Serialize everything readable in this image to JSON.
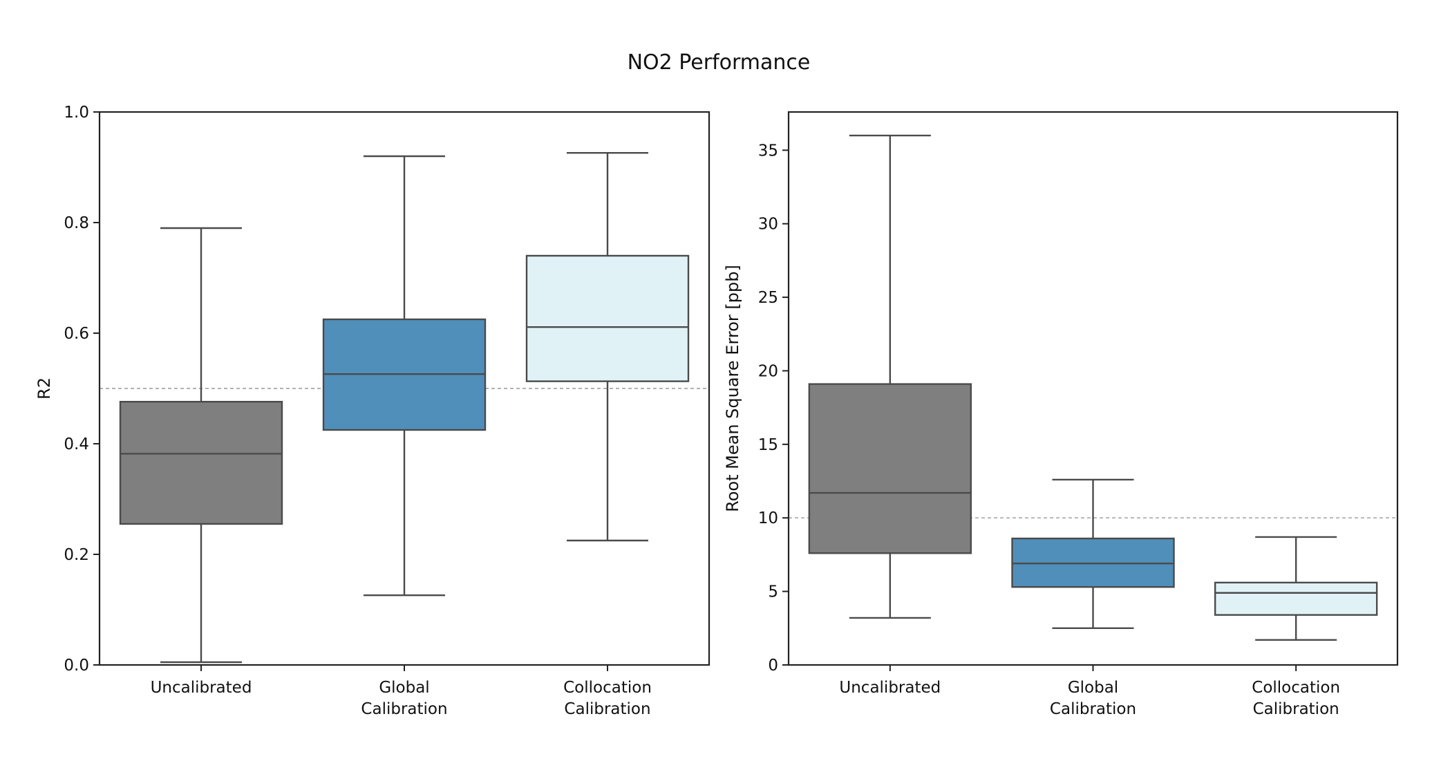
{
  "title": "NO2 Performance",
  "chart_data": [
    {
      "type": "box",
      "title": "",
      "xlabel": "",
      "ylabel": "R2",
      "ylim": [
        0,
        1.0
      ],
      "yticks": [
        "0.0",
        "0.2",
        "0.4",
        "0.6",
        "0.8",
        "1.0"
      ],
      "ytick_values": [
        0,
        0.2,
        0.4,
        0.6,
        0.8,
        1.0
      ],
      "reference_line": 0.5,
      "categories": [
        [
          "Uncalibrated"
        ],
        [
          "Global",
          "Calibration"
        ],
        [
          "Collocation",
          "Calibration"
        ]
      ],
      "boxes": [
        {
          "whisker_low": 0.005,
          "q1": 0.255,
          "median": 0.382,
          "q3": 0.476,
          "whisker_high": 0.79,
          "color": "#7f7f7f"
        },
        {
          "whisker_low": 0.126,
          "q1": 0.425,
          "median": 0.526,
          "q3": 0.625,
          "whisker_high": 0.92,
          "color": "#4f8fba"
        },
        {
          "whisker_low": 0.225,
          "q1": 0.513,
          "median": 0.611,
          "q3": 0.74,
          "whisker_high": 0.926,
          "color": "#e1f2f7"
        }
      ]
    },
    {
      "type": "box",
      "title": "",
      "xlabel": "",
      "ylabel": "Root Mean Square Error [ppb]",
      "ylim": [
        0,
        37.6
      ],
      "yticks": [
        "0",
        "5",
        "10",
        "15",
        "20",
        "25",
        "30",
        "35"
      ],
      "ytick_values": [
        0,
        5,
        10,
        15,
        20,
        25,
        30,
        35
      ],
      "reference_line": 10,
      "categories": [
        [
          "Uncalibrated"
        ],
        [
          "Global",
          "Calibration"
        ],
        [
          "Collocation",
          "Calibration"
        ]
      ],
      "boxes": [
        {
          "whisker_low": 3.2,
          "q1": 7.6,
          "median": 11.7,
          "q3": 19.1,
          "whisker_high": 36.0,
          "color": "#7f7f7f"
        },
        {
          "whisker_low": 2.5,
          "q1": 5.3,
          "median": 6.9,
          "q3": 8.6,
          "whisker_high": 12.6,
          "color": "#4f8fba"
        },
        {
          "whisker_low": 1.7,
          "q1": 3.4,
          "median": 4.9,
          "q3": 5.6,
          "whisker_high": 8.7,
          "color": "#e1f2f7"
        }
      ]
    }
  ]
}
